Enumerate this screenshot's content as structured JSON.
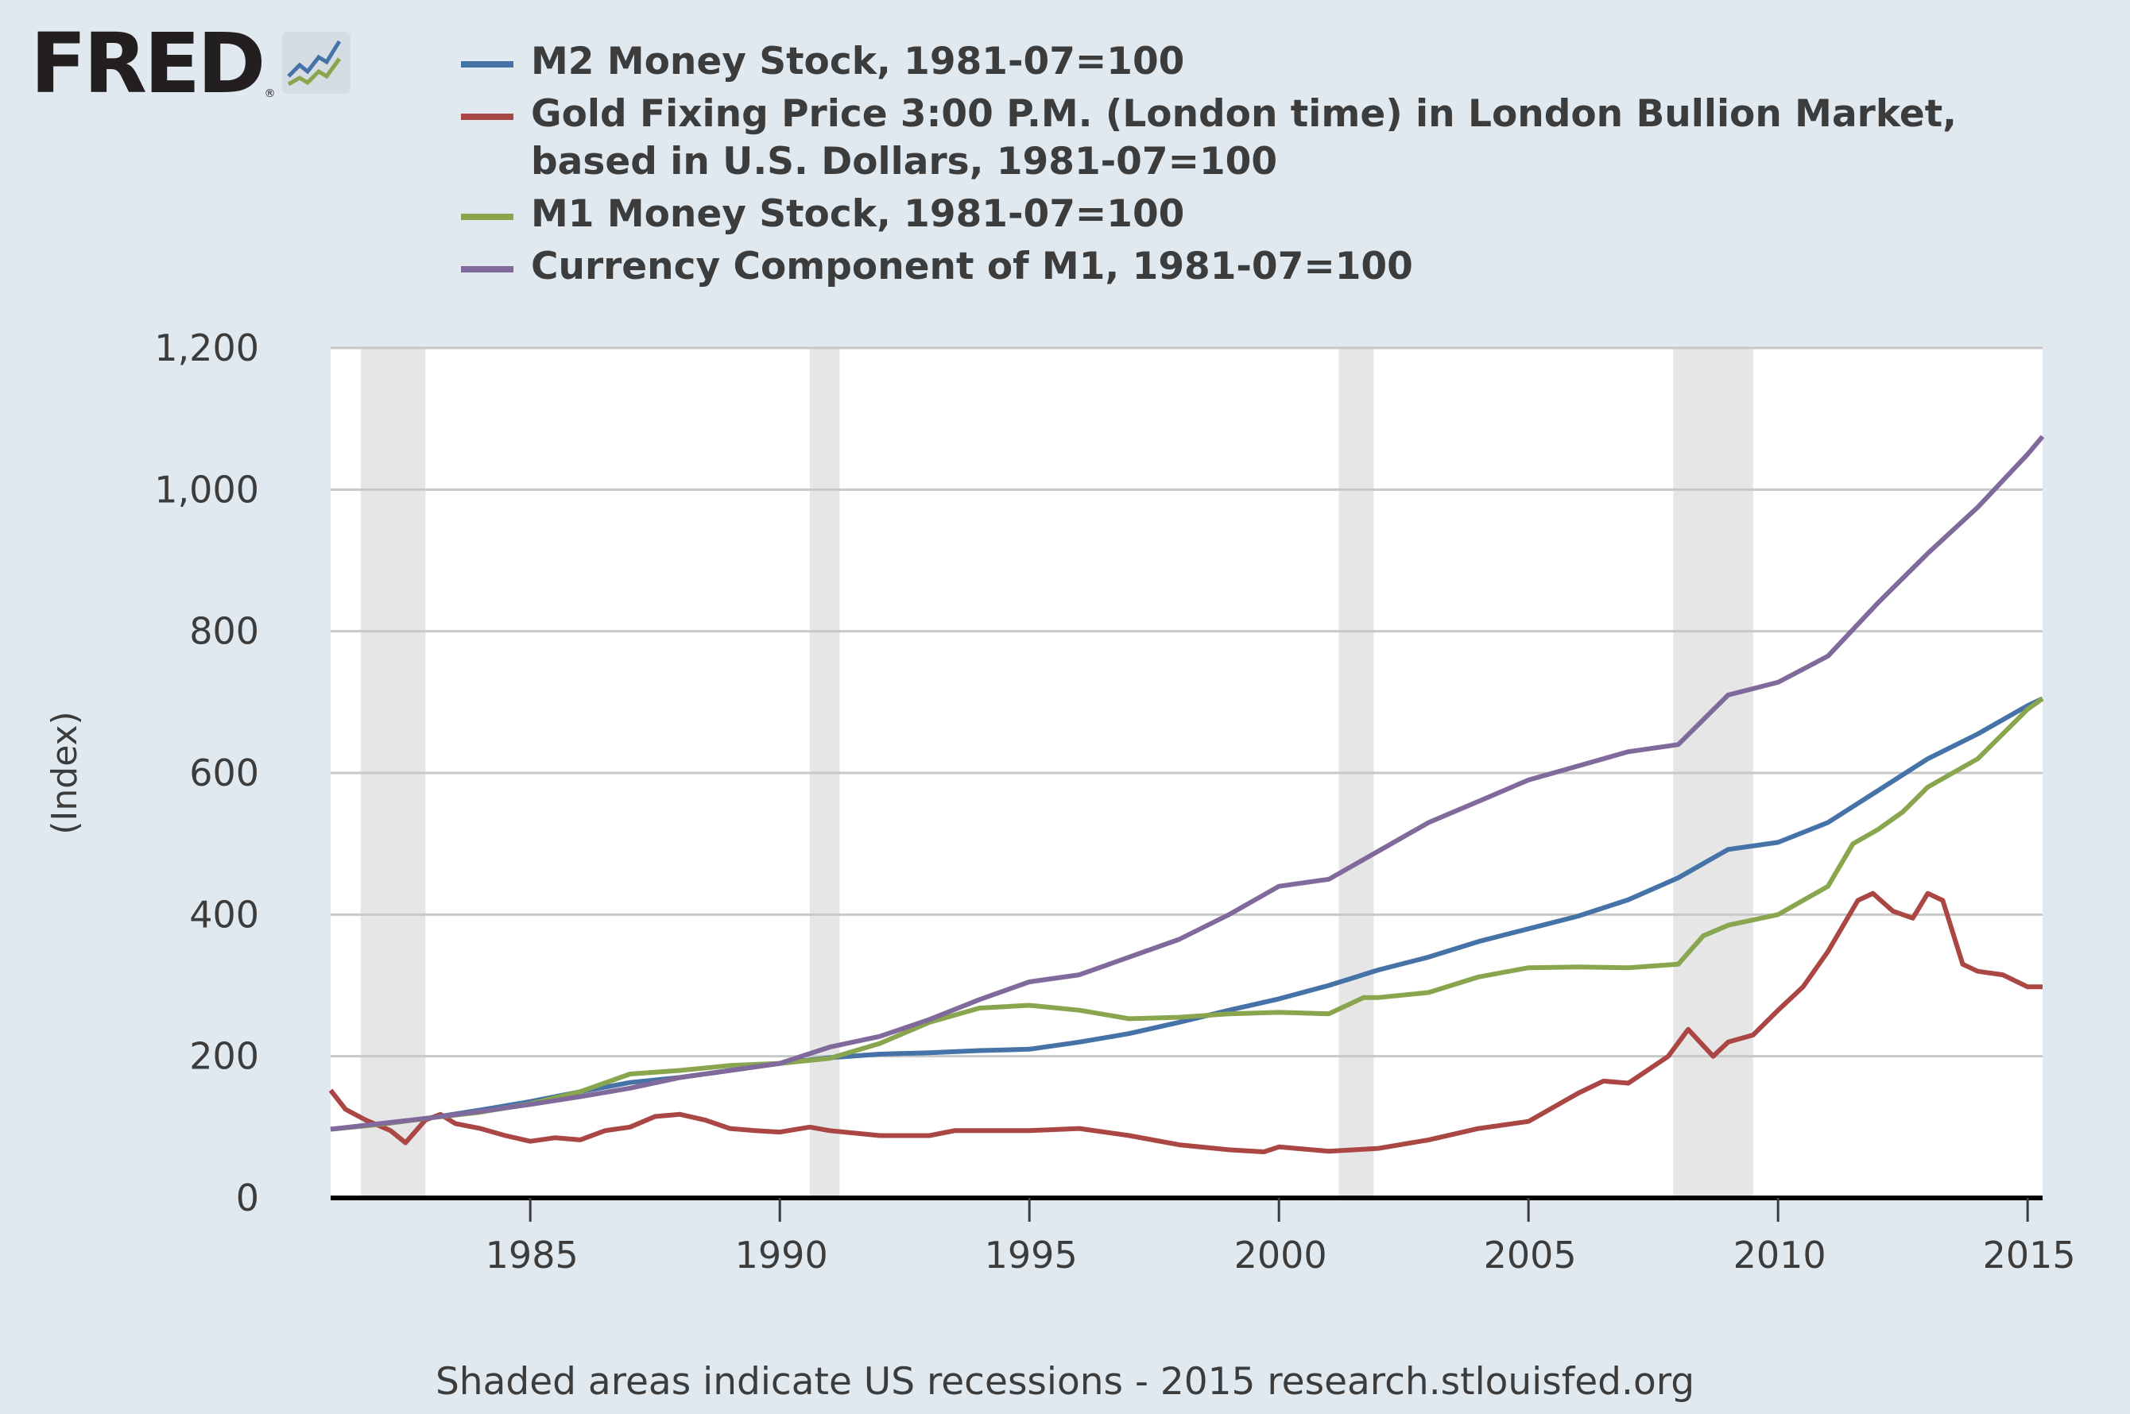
{
  "logo": {
    "text": "FRED",
    "registered": "®"
  },
  "footer": "Shaded areas indicate US recessions - 2015 research.stlouisfed.org",
  "chart_data": {
    "type": "line",
    "title": "",
    "xlabel": "",
    "ylabel": "(Index)",
    "xlim": [
      1981.0,
      2015.3
    ],
    "ylim": [
      0,
      1200
    ],
    "yticks": [
      0,
      200,
      400,
      600,
      800,
      1000,
      1200
    ],
    "ytick_labels": [
      "0",
      "200",
      "400",
      "600",
      "800",
      "1,000",
      "1,200"
    ],
    "xticks": [
      1985,
      1990,
      1995,
      2000,
      2005,
      2010,
      2015
    ],
    "xtick_labels": [
      "1985",
      "1990",
      "1995",
      "2000",
      "2005",
      "2010",
      "2015"
    ],
    "grid": true,
    "legend_position": "top",
    "recessions": [
      [
        1981.6,
        1982.9
      ],
      [
        1990.6,
        1991.2
      ],
      [
        2001.2,
        2001.9
      ],
      [
        2007.9,
        2009.5
      ]
    ],
    "series": [
      {
        "name": "M2 Money Stock, 1981-07=100",
        "color": "#4572a7",
        "points": [
          [
            1981.0,
            97
          ],
          [
            1982.0,
            104
          ],
          [
            1983.0,
            113
          ],
          [
            1984.0,
            124
          ],
          [
            1985.0,
            136
          ],
          [
            1986.0,
            150
          ],
          [
            1987.0,
            163
          ],
          [
            1988.0,
            170
          ],
          [
            1989.0,
            180
          ],
          [
            1990.0,
            190
          ],
          [
            1991.0,
            198
          ],
          [
            1992.0,
            203
          ],
          [
            1993.0,
            205
          ],
          [
            1994.0,
            208
          ],
          [
            1995.0,
            210
          ],
          [
            1996.0,
            220
          ],
          [
            1997.0,
            232
          ],
          [
            1998.0,
            248
          ],
          [
            1999.0,
            265
          ],
          [
            2000.0,
            281
          ],
          [
            2001.0,
            300
          ],
          [
            2002.0,
            322
          ],
          [
            2003.0,
            340
          ],
          [
            2004.0,
            362
          ],
          [
            2005.0,
            380
          ],
          [
            2006.0,
            398
          ],
          [
            2007.0,
            421
          ],
          [
            2008.0,
            452
          ],
          [
            2009.0,
            492
          ],
          [
            2010.0,
            502
          ],
          [
            2011.0,
            530
          ],
          [
            2012.0,
            575
          ],
          [
            2013.0,
            620
          ],
          [
            2014.0,
            655
          ],
          [
            2015.0,
            695
          ],
          [
            2015.3,
            705
          ]
        ]
      },
      {
        "name": "Gold Fixing Price 3:00 P.M. (London time) in London Bullion Market, based in U.S. Dollars, 1981-07=100",
        "color": "#aa4643",
        "points": [
          [
            1981.0,
            152
          ],
          [
            1981.3,
            125
          ],
          [
            1981.7,
            110
          ],
          [
            1982.2,
            95
          ],
          [
            1982.5,
            78
          ],
          [
            1982.9,
            110
          ],
          [
            1983.2,
            118
          ],
          [
            1983.5,
            105
          ],
          [
            1984.0,
            98
          ],
          [
            1984.5,
            88
          ],
          [
            1985.0,
            80
          ],
          [
            1985.5,
            85
          ],
          [
            1986.0,
            82
          ],
          [
            1986.5,
            95
          ],
          [
            1987.0,
            100
          ],
          [
            1987.5,
            115
          ],
          [
            1988.0,
            118
          ],
          [
            1988.5,
            110
          ],
          [
            1989.0,
            98
          ],
          [
            1989.5,
            95
          ],
          [
            1990.0,
            93
          ],
          [
            1990.6,
            100
          ],
          [
            1991.0,
            95
          ],
          [
            1992.0,
            88
          ],
          [
            1993.0,
            88
          ],
          [
            1993.5,
            95
          ],
          [
            1994.0,
            95
          ],
          [
            1995.0,
            95
          ],
          [
            1996.0,
            98
          ],
          [
            1997.0,
            88
          ],
          [
            1998.0,
            75
          ],
          [
            1999.0,
            68
          ],
          [
            1999.7,
            65
          ],
          [
            2000.0,
            72
          ],
          [
            2001.0,
            66
          ],
          [
            2002.0,
            70
          ],
          [
            2003.0,
            82
          ],
          [
            2004.0,
            98
          ],
          [
            2005.0,
            108
          ],
          [
            2006.0,
            148
          ],
          [
            2006.5,
            165
          ],
          [
            2007.0,
            162
          ],
          [
            2007.8,
            200
          ],
          [
            2008.2,
            238
          ],
          [
            2008.7,
            200
          ],
          [
            2009.0,
            220
          ],
          [
            2009.5,
            230
          ],
          [
            2010.0,
            265
          ],
          [
            2010.5,
            298
          ],
          [
            2011.0,
            348
          ],
          [
            2011.6,
            420
          ],
          [
            2011.9,
            430
          ],
          [
            2012.3,
            405
          ],
          [
            2012.7,
            395
          ],
          [
            2013.0,
            430
          ],
          [
            2013.3,
            420
          ],
          [
            2013.7,
            330
          ],
          [
            2014.0,
            320
          ],
          [
            2014.5,
            315
          ],
          [
            2015.0,
            298
          ],
          [
            2015.3,
            298
          ]
        ]
      },
      {
        "name": "M1 Money Stock, 1981-07=100",
        "color": "#89a54e",
        "points": [
          [
            1981.0,
            97
          ],
          [
            1982.0,
            104
          ],
          [
            1983.0,
            113
          ],
          [
            1984.0,
            121
          ],
          [
            1985.0,
            133
          ],
          [
            1986.0,
            150
          ],
          [
            1987.0,
            175
          ],
          [
            1988.0,
            180
          ],
          [
            1989.0,
            187
          ],
          [
            1990.0,
            190
          ],
          [
            1991.0,
            197
          ],
          [
            1992.0,
            218
          ],
          [
            1993.0,
            248
          ],
          [
            1994.0,
            268
          ],
          [
            1995.0,
            272
          ],
          [
            1996.0,
            265
          ],
          [
            1997.0,
            253
          ],
          [
            1998.0,
            255
          ],
          [
            1999.0,
            260
          ],
          [
            2000.0,
            262
          ],
          [
            2001.0,
            260
          ],
          [
            2001.7,
            283
          ],
          [
            2002.0,
            283
          ],
          [
            2003.0,
            290
          ],
          [
            2004.0,
            312
          ],
          [
            2005.0,
            325
          ],
          [
            2006.0,
            326
          ],
          [
            2007.0,
            325
          ],
          [
            2008.0,
            330
          ],
          [
            2008.5,
            370
          ],
          [
            2009.0,
            385
          ],
          [
            2010.0,
            400
          ],
          [
            2011.0,
            440
          ],
          [
            2011.5,
            500
          ],
          [
            2012.0,
            520
          ],
          [
            2012.5,
            545
          ],
          [
            2013.0,
            580
          ],
          [
            2014.0,
            620
          ],
          [
            2015.0,
            690
          ],
          [
            2015.3,
            705
          ]
        ]
      },
      {
        "name": "Currency Component of M1, 1981-07=100",
        "color": "#80699b",
        "points": [
          [
            1981.0,
            97
          ],
          [
            1982.0,
            105
          ],
          [
            1983.0,
            113
          ],
          [
            1984.0,
            122
          ],
          [
            1985.0,
            132
          ],
          [
            1986.0,
            143
          ],
          [
            1987.0,
            155
          ],
          [
            1988.0,
            170
          ],
          [
            1989.0,
            180
          ],
          [
            1990.0,
            190
          ],
          [
            1991.0,
            213
          ],
          [
            1992.0,
            228
          ],
          [
            1993.0,
            252
          ],
          [
            1994.0,
            280
          ],
          [
            1995.0,
            305
          ],
          [
            1996.0,
            315
          ],
          [
            1997.0,
            340
          ],
          [
            1998.0,
            365
          ],
          [
            1999.0,
            400
          ],
          [
            2000.0,
            440
          ],
          [
            2001.0,
            450
          ],
          [
            2002.0,
            490
          ],
          [
            2003.0,
            530
          ],
          [
            2004.0,
            560
          ],
          [
            2005.0,
            590
          ],
          [
            2006.0,
            610
          ],
          [
            2007.0,
            630
          ],
          [
            2008.0,
            640
          ],
          [
            2009.0,
            710
          ],
          [
            2010.0,
            728
          ],
          [
            2011.0,
            765
          ],
          [
            2012.0,
            840
          ],
          [
            2013.0,
            910
          ],
          [
            2014.0,
            975
          ],
          [
            2015.0,
            1050
          ],
          [
            2015.3,
            1075
          ]
        ]
      }
    ]
  }
}
